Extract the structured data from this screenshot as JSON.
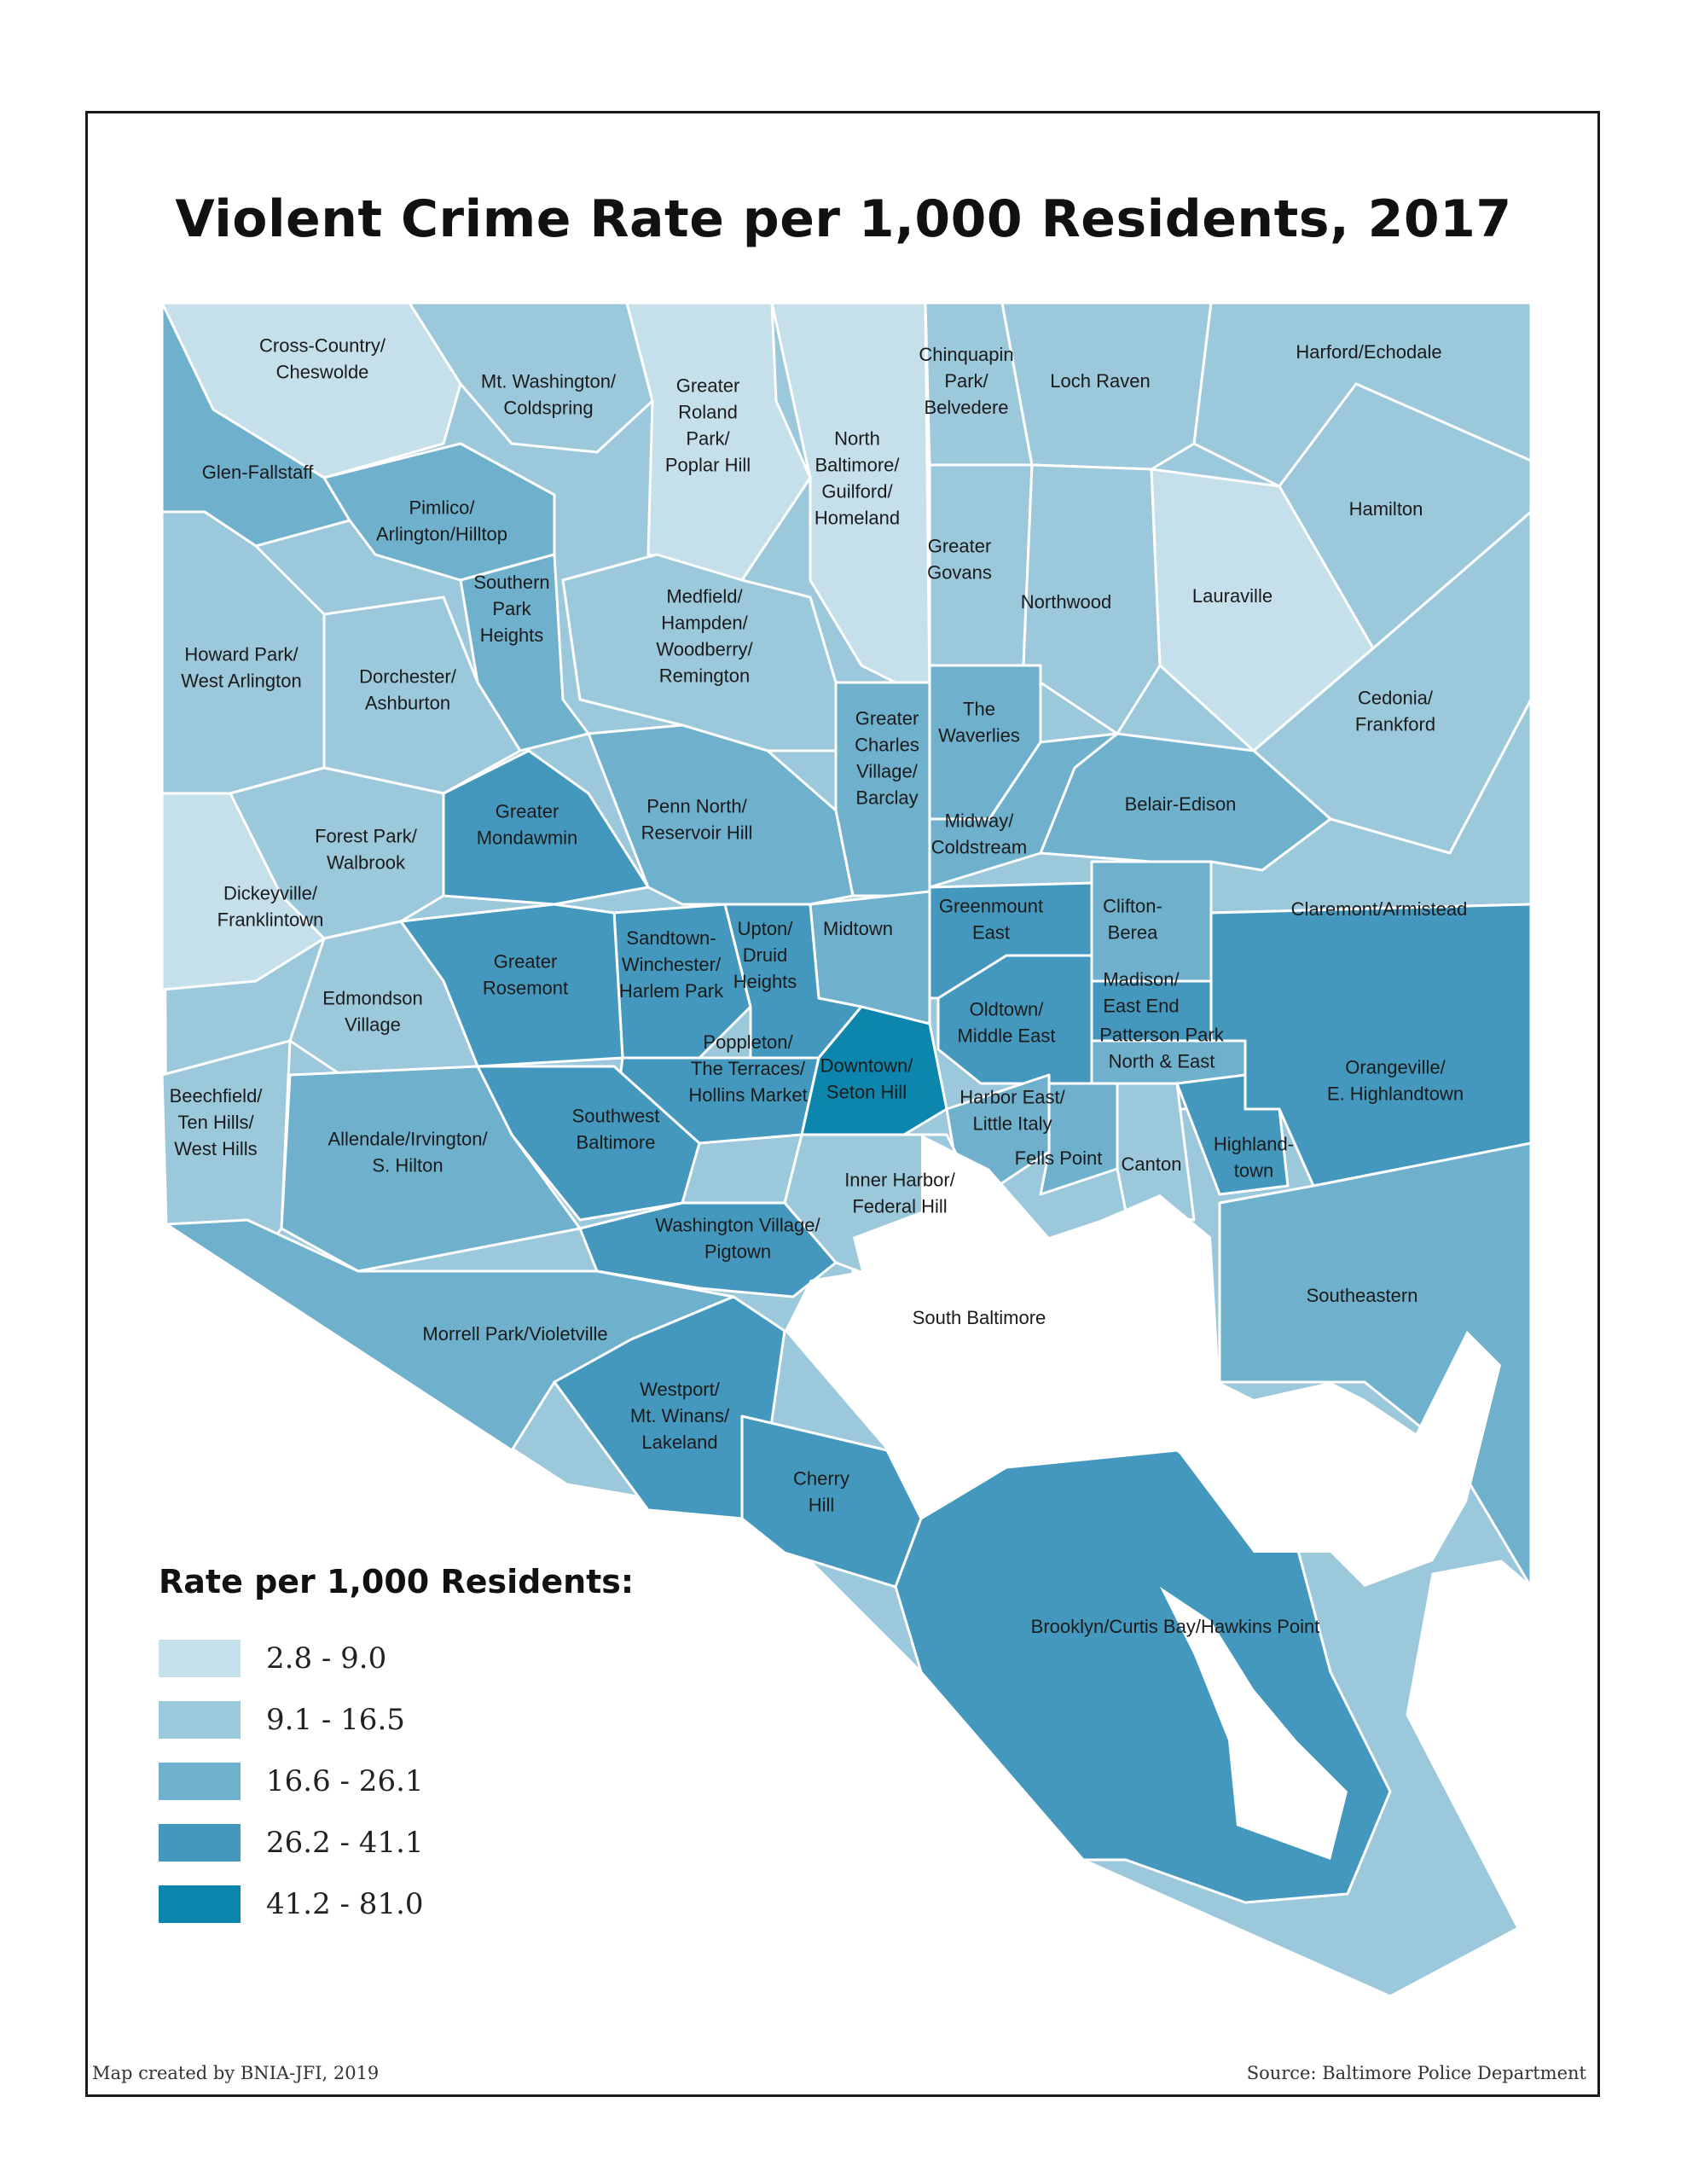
{
  "title": "Violent Crime Rate per 1,000 Residents, 2017",
  "legend": {
    "title": "Rate per 1,000 Residents:",
    "items": [
      {
        "label": "2.8 - 9.0",
        "color": "#c5e0ea"
      },
      {
        "label": "9.1 - 16.5",
        "color": "#9cc8dc"
      },
      {
        "label": "16.6 - 26.1",
        "color": "#6fb0cd"
      },
      {
        "label": "26.2 - 41.1",
        "color": "#4498bd"
      },
      {
        "label": "41.2 - 81.0",
        "color": "#0c86ac"
      }
    ]
  },
  "credit": "Map created by BNIA-JFI, 2019",
  "source": "Source: Baltimore Police Department",
  "neighborhoods": [
    {
      "name": "Cross-Country/ Cheswolde",
      "lines": [
        "Cross-Country/",
        "Cheswolde"
      ],
      "class": 1
    },
    {
      "name": "Mt. Washington/ Coldspring",
      "lines": [
        "Mt. Washington/",
        "Coldspring"
      ],
      "class": 2
    },
    {
      "name": "Greater Roland Park/ Poplar Hill",
      "lines": [
        "Greater",
        "Roland",
        "Park/",
        "Poplar Hill"
      ],
      "class": 1
    },
    {
      "name": "North Baltimore/ Guilford/ Homeland",
      "lines": [
        "North",
        "Baltimore/",
        "Guilford/",
        "Homeland"
      ],
      "class": 1
    },
    {
      "name": "Chinquapin Park/ Belvedere",
      "lines": [
        "Chinquapin",
        "Park/",
        "Belvedere"
      ],
      "class": 2
    },
    {
      "name": "Loch Raven",
      "lines": [
        "Loch Raven"
      ],
      "class": 2
    },
    {
      "name": "Harford/Echodale",
      "lines": [
        "Harford/Echodale"
      ],
      "class": 2
    },
    {
      "name": "Glen-Fallstaff",
      "lines": [
        "Glen-Fallstaff"
      ],
      "class": 3
    },
    {
      "name": "Pimlico/ Arlington/Hilltop",
      "lines": [
        "Pimlico/",
        "Arlington/Hilltop"
      ],
      "class": 3
    },
    {
      "name": "Hamilton",
      "lines": [
        "Hamilton"
      ],
      "class": 2
    },
    {
      "name": "Greater Govans",
      "lines": [
        "Greater",
        "Govans"
      ],
      "class": 2
    },
    {
      "name": "Northwood",
      "lines": [
        "Northwood"
      ],
      "class": 2
    },
    {
      "name": "Lauraville",
      "lines": [
        "Lauraville"
      ],
      "class": 1
    },
    {
      "name": "Southern Park Heights",
      "lines": [
        "Southern",
        "Park",
        "Heights"
      ],
      "class": 3
    },
    {
      "name": "Howard Park/ West Arlington",
      "lines": [
        "Howard Park/",
        "West Arlington"
      ],
      "class": 2
    },
    {
      "name": "Medfield/ Hampden/ Woodberry/ Remington",
      "lines": [
        "Medfield/",
        "Hampden/",
        "Woodberry/",
        "Remington"
      ],
      "class": 2
    },
    {
      "name": "Dorchester/ Ashburton",
      "lines": [
        "Dorchester/",
        "Ashburton"
      ],
      "class": 2
    },
    {
      "name": "The Waverlies",
      "lines": [
        "The",
        "Waverlies"
      ],
      "class": 3
    },
    {
      "name": "Cedonia/ Frankford",
      "lines": [
        "Cedonia/",
        "Frankford"
      ],
      "class": 2
    },
    {
      "name": "Greater Charles Village/ Barclay",
      "lines": [
        "Greater",
        "Charles",
        "Village/",
        "Barclay"
      ],
      "class": 3
    },
    {
      "name": "Belair-Edison",
      "lines": [
        "Belair-Edison"
      ],
      "class": 3
    },
    {
      "name": "Greater Mondawmin",
      "lines": [
        "Greater",
        "Mondawmin"
      ],
      "class": 4
    },
    {
      "name": "Penn North/ Reservoir Hill",
      "lines": [
        "Penn North/",
        "Reservoir Hill"
      ],
      "class": 3
    },
    {
      "name": "Forest Park/ Walbrook",
      "lines": [
        "Forest Park/",
        "Walbrook"
      ],
      "class": 2
    },
    {
      "name": "Midway/ Coldstream",
      "lines": [
        "Midway/",
        "Coldstream"
      ],
      "class": 3
    },
    {
      "name": "Dickeyville/ Franklintown",
      "lines": [
        "Dickeyville/",
        "Franklintown"
      ],
      "class": 1
    },
    {
      "name": "Claremont/Armistead",
      "lines": [
        "Claremont/Armistead"
      ],
      "class": 2
    },
    {
      "name": "Greenmount East",
      "lines": [
        "Greenmount",
        "East"
      ],
      "class": 4
    },
    {
      "name": "Clifton-Berea",
      "lines": [
        "Clifton-",
        "Berea"
      ],
      "class": 3
    },
    {
      "name": "Midtown",
      "lines": [
        "Midtown"
      ],
      "class": 3
    },
    {
      "name": "Sandtown-Winchester/ Harlem Park",
      "lines": [
        "Sandtown-",
        "Winchester/",
        "Harlem Park"
      ],
      "class": 4
    },
    {
      "name": "Upton/ Druid Heights",
      "lines": [
        "Upton/",
        "Druid",
        "Heights"
      ],
      "class": 4
    },
    {
      "name": "Greater Rosemont",
      "lines": [
        "Greater",
        "Rosemont"
      ],
      "class": 4
    },
    {
      "name": "Edmondson Village",
      "lines": [
        "Edmondson",
        "Village"
      ],
      "class": 2
    },
    {
      "name": "Madison/ East End",
      "lines": [
        "Madison/",
        "East End"
      ],
      "class": 4
    },
    {
      "name": "Oldtown/ Middle East",
      "lines": [
        "Oldtown/",
        "Middle East"
      ],
      "class": 4
    },
    {
      "name": "Patterson Park North & East",
      "lines": [
        "Patterson Park",
        "North & East"
      ],
      "class": 3
    },
    {
      "name": "Poppleton/ The Terraces/ Hollins Market",
      "lines": [
        "Poppleton/",
        "The Terraces/",
        "Hollins Market"
      ],
      "class": 4
    },
    {
      "name": "Downtown/ Seton Hill",
      "lines": [
        "Downtown/",
        "Seton Hill"
      ],
      "class": 5
    },
    {
      "name": "Orangeville/ E. Highlandtown",
      "lines": [
        "Orangeville/",
        "E. Highlandtown"
      ],
      "class": 4
    },
    {
      "name": "Beechfield/ Ten Hills/ West Hills",
      "lines": [
        "Beechfield/",
        "Ten Hills/",
        "West Hills"
      ],
      "class": 2
    },
    {
      "name": "Southwest Baltimore",
      "lines": [
        "Southwest",
        "Baltimore"
      ],
      "class": 4
    },
    {
      "name": "Harbor East/ Little Italy",
      "lines": [
        "Harbor East/",
        "Little Italy"
      ],
      "class": 3
    },
    {
      "name": "Allendale/Irvington/ S. Hilton",
      "lines": [
        "Allendale/Irvington/",
        "S. Hilton"
      ],
      "class": 3
    },
    {
      "name": "Fells Point",
      "lines": [
        "Fells Point"
      ],
      "class": 3
    },
    {
      "name": "Canton",
      "lines": [
        "Canton"
      ],
      "class": 2
    },
    {
      "name": "Highlandtown",
      "lines": [
        "Highland-",
        "town"
      ],
      "class": 4
    },
    {
      "name": "Inner Harbor/ Federal Hill",
      "lines": [
        "Inner Harbor/",
        "Federal Hill"
      ],
      "class": 2
    },
    {
      "name": "Washington Village/ Pigtown",
      "lines": [
        "Washington Village/",
        "Pigtown"
      ],
      "class": 4
    },
    {
      "name": "Southeastern",
      "lines": [
        "Southeastern"
      ],
      "class": 3
    },
    {
      "name": "South Baltimore",
      "lines": [
        "South Baltimore"
      ],
      "class": 1
    },
    {
      "name": "Morrell Park/Violetville",
      "lines": [
        "Morrell Park/Violetville"
      ],
      "class": 3
    },
    {
      "name": "Westport/ Mt. Winans/ Lakeland",
      "lines": [
        "Westport/",
        "Mt. Winans/",
        "Lakeland"
      ],
      "class": 4
    },
    {
      "name": "Cherry Hill",
      "lines": [
        "Cherry",
        "Hill"
      ],
      "class": 4
    },
    {
      "name": "Brooklyn/Curtis Bay/Hawkins Point",
      "lines": [
        "Brooklyn/Curtis Bay/Hawkins Point"
      ],
      "class": 4
    }
  ]
}
